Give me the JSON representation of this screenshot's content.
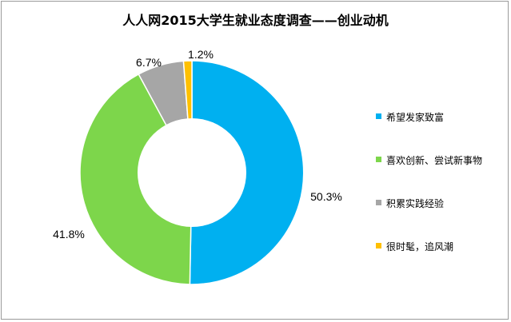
{
  "chart_data": {
    "type": "pie",
    "title": "人人网2015大学生就业态度调查——创业动机",
    "categories": [
      "希望发家致富",
      "喜欢创新、尝试新事物",
      "积累实践经验",
      "很时髦，追风潮"
    ],
    "values": [
      50.3,
      41.8,
      6.7,
      1.2
    ],
    "value_labels": [
      "50.3%",
      "41.8%",
      "6.7%",
      "1.2%"
    ],
    "colors": [
      "#00b0f0",
      "#7dd64b",
      "#a6a6a6",
      "#ffc000"
    ],
    "donut": true,
    "legend": "right"
  }
}
